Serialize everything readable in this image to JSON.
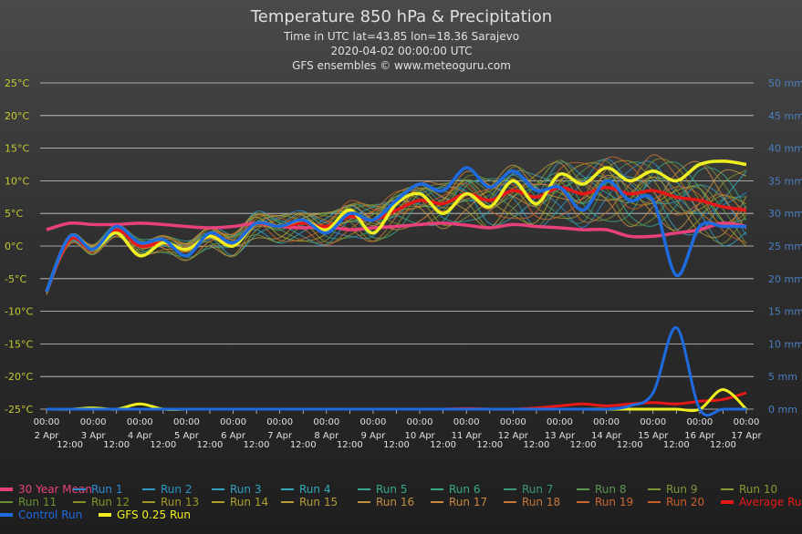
{
  "chart_data": {
    "type": "line",
    "title": "Temperature 850 hPa & Precipitation",
    "subtitle_lines": [
      "Time in UTC lat=43.85 lon=18.36 Sarajevo",
      "2020-04-02 00:00:00 UTC",
      "GFS ensembles © www.meteoguru.com"
    ],
    "y_left": {
      "ylim": [
        -25,
        25
      ],
      "ticks": [
        "25°C",
        "20°C",
        "15°C",
        "10°C",
        "5°C",
        "0°C",
        "-5°C",
        "-10°C",
        "-15°C",
        "-20°C",
        "-25°C"
      ],
      "ticks_values": [
        25,
        20,
        15,
        10,
        5,
        0,
        -5,
        -10,
        -15,
        -20,
        -25
      ]
    },
    "y_right": {
      "ylim": [
        0,
        50
      ],
      "ticks": [
        "50 mm",
        "45 mm",
        "40 mm",
        "35 mm",
        "30 mm",
        "25 mm",
        "20 mm",
        "15 mm",
        "10 mm",
        "5 mm",
        "0 mm"
      ],
      "ticks_values": [
        50,
        45,
        40,
        35,
        30,
        25,
        20,
        15,
        10,
        5,
        0
      ]
    },
    "x_ticks_top": [
      "00:00",
      "00:00",
      "00:00",
      "00:00",
      "00:00",
      "00:00",
      "00:00",
      "00:00",
      "00:00",
      "00:00",
      "00:00",
      "00:00",
      "00:00",
      "00:00",
      "00:00",
      "00:00"
    ],
    "x_ticks_bottom": [
      "2 Apr",
      "3 Apr",
      "4 Apr",
      "5 Apr",
      "6 Apr",
      "7 Apr",
      "8 Apr",
      "9 Apr",
      "10 Apr",
      "11 Apr",
      "12 Apr",
      "13 Apr",
      "14 Apr",
      "15 Apr",
      "16 Apr",
      "17 Apr"
    ],
    "x_ticks_mid": [
      "12:00",
      "12:00",
      "12:00",
      "12:00",
      "12:00",
      "12:00",
      "12:00",
      "12:00",
      "12:00",
      "12:00",
      "12:00",
      "12:00",
      "12:00",
      "12:00",
      "12:00"
    ],
    "x_hours": [
      0,
      12,
      24,
      36,
      48,
      60,
      72,
      84,
      96,
      108,
      120,
      132,
      144,
      156,
      168,
      180,
      192,
      204,
      216,
      228,
      240,
      252,
      264,
      276,
      288,
      300,
      312,
      324,
      336,
      348,
      360
    ],
    "grid": true,
    "legend_position": "bottom",
    "series": [
      {
        "name": "30 Year Mean",
        "color": "#e8407a",
        "axis": "temp",
        "values": [
          2.5,
          3.5,
          3.3,
          3.3,
          3.5,
          3.3,
          3.0,
          2.8,
          3.0,
          3.5,
          3.0,
          2.8,
          3.0,
          2.5,
          2.8,
          3.0,
          3.3,
          3.5,
          3.2,
          2.8,
          3.3,
          3.0,
          2.8,
          2.5,
          2.5,
          1.5,
          1.5,
          2.0,
          2.5,
          3.5,
          3.0
        ]
      },
      {
        "name": "Control Run",
        "color": "#1e6be0",
        "axis": "temp",
        "values": [
          -7,
          1.5,
          -0.5,
          3.0,
          0.5,
          1.0,
          -1.5,
          2.0,
          0.5,
          3.5,
          3.0,
          4.0,
          2.0,
          5.0,
          4.0,
          7.0,
          9.5,
          8.5,
          12.0,
          9.0,
          11.5,
          8.5,
          9.0,
          5.5,
          10.0,
          7.0,
          7.0,
          -4.5,
          3.0,
          3.0,
          3.0
        ]
      },
      {
        "name": "GFS 0.25 Run",
        "color": "#f0f020",
        "axis": "temp",
        "values": [
          -7,
          1.5,
          -0.5,
          2.0,
          -1.5,
          0.5,
          -0.5,
          1.5,
          0.0,
          3.5,
          3.0,
          4.0,
          2.5,
          5.5,
          2.0,
          6.5,
          8.0,
          5.0,
          8.0,
          6.0,
          10.0,
          6.5,
          11.0,
          9.5,
          12.0,
          10.0,
          11.5,
          10.0,
          12.5,
          13.0,
          12.5
        ]
      },
      {
        "name": "Average Run",
        "color": "#e81818",
        "axis": "temp",
        "values": [
          -7,
          1.0,
          -0.5,
          2.5,
          0.0,
          0.5,
          -0.5,
          1.5,
          0.5,
          3.5,
          3.0,
          3.5,
          3.0,
          4.5,
          4.0,
          5.5,
          7.0,
          6.5,
          8.0,
          7.0,
          8.5,
          7.5,
          9.0,
          8.0,
          9.0,
          8.0,
          8.5,
          7.5,
          7.0,
          6.0,
          5.5
        ]
      },
      {
        "name": "Control Run",
        "color": "#1e6be0",
        "axis": "precip",
        "values": [
          0,
          0,
          0,
          0,
          0,
          0,
          0,
          0,
          0,
          0,
          0,
          0,
          0,
          0,
          0,
          0,
          0,
          0,
          0,
          0,
          0,
          0,
          0,
          0,
          0,
          0.5,
          2.5,
          12.5,
          0,
          0,
          0
        ]
      },
      {
        "name": "GFS 0.25 Run",
        "color": "#f0f020",
        "axis": "precip",
        "values": [
          0,
          0,
          0.2,
          0,
          0.8,
          0,
          0,
          0,
          0,
          0,
          0,
          0,
          0,
          0,
          0,
          0,
          0,
          0,
          0,
          0,
          0,
          0,
          0,
          0,
          0,
          0,
          0,
          0,
          0,
          3.0,
          0
        ]
      },
      {
        "name": "Average Run",
        "color": "#e81818",
        "axis": "precip",
        "values": [
          0,
          0,
          0,
          0,
          0,
          0,
          0,
          0,
          0,
          0,
          0,
          0,
          0,
          0,
          0,
          0,
          0,
          0,
          0.1,
          0,
          0,
          0.2,
          0.5,
          0.8,
          0.5,
          0.8,
          1.0,
          0.8,
          1.2,
          1.5,
          2.5
        ]
      }
    ],
    "legend_items": [
      {
        "name": "30 Year Mean",
        "color": "#e8407a",
        "thick": true
      },
      {
        "name": "Run 1",
        "color": "#2e8bd0"
      },
      {
        "name": "Run 2",
        "color": "#3096c8"
      },
      {
        "name": "Run 3",
        "color": "#32a0c0"
      },
      {
        "name": "Run 4",
        "color": "#34a8b8"
      },
      {
        "name": "Run 5",
        "color": "#36a890"
      },
      {
        "name": "Run 6",
        "color": "#38a880"
      },
      {
        "name": "Run 7",
        "color": "#3a9878"
      },
      {
        "name": "Run 8",
        "color": "#5a9850"
      },
      {
        "name": "Run 9",
        "color": "#7a9838"
      },
      {
        "name": "Run 10",
        "color": "#8a9830"
      },
      {
        "name": "Run 11",
        "color": "#6a9030"
      },
      {
        "name": "Run 12",
        "color": "#8a9028"
      },
      {
        "name": "Run 13",
        "color": "#a09828"
      },
      {
        "name": "Run 14",
        "color": "#b0a028"
      },
      {
        "name": "Run 15",
        "color": "#b89a38"
      },
      {
        "name": "Run 16",
        "color": "#c09040"
      },
      {
        "name": "Run 17",
        "color": "#c88840"
      },
      {
        "name": "Run 18",
        "color": "#c87838"
      },
      {
        "name": "Run 19",
        "color": "#c86830"
      },
      {
        "name": "Run 20",
        "color": "#c86028"
      },
      {
        "name": "Average Run",
        "color": "#e81818",
        "thick": true
      },
      {
        "name": "Control Run",
        "color": "#1e6be0",
        "thick": true
      },
      {
        "name": "GFS 0.25 Run",
        "color": "#f0f020",
        "thick": true
      }
    ]
  }
}
